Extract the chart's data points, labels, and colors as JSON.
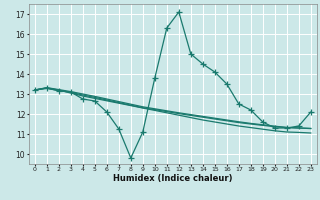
{
  "title": "",
  "xlabel": "Humidex (Indice chaleur)",
  "background_color": "#cce8e8",
  "grid_color": "#ffffff",
  "line_color": "#1a7a6e",
  "xlim": [
    -0.5,
    23.5
  ],
  "ylim": [
    9.5,
    17.5
  ],
  "yticks": [
    10,
    11,
    12,
    13,
    14,
    15,
    16,
    17
  ],
  "xticks": [
    0,
    1,
    2,
    3,
    4,
    5,
    6,
    7,
    8,
    9,
    10,
    11,
    12,
    13,
    14,
    15,
    16,
    17,
    18,
    19,
    20,
    21,
    22,
    23
  ],
  "series1_x": [
    0,
    1,
    2,
    3,
    4,
    5,
    6,
    7,
    8,
    9,
    10,
    11,
    12,
    13,
    14,
    15,
    16,
    17,
    18,
    19,
    20,
    21,
    22,
    23
  ],
  "series1_y": [
    13.2,
    13.3,
    13.15,
    13.1,
    12.75,
    12.65,
    12.1,
    11.25,
    9.8,
    11.1,
    13.8,
    16.3,
    17.1,
    15.0,
    14.5,
    14.1,
    13.5,
    12.5,
    12.2,
    11.6,
    11.3,
    11.3,
    11.4,
    12.1
  ],
  "series2_x": [
    0,
    1,
    2,
    3,
    4,
    5,
    6,
    7,
    8,
    9,
    10,
    11,
    12,
    13,
    14,
    15,
    16,
    17,
    18,
    19,
    20,
    21,
    22,
    23
  ],
  "series2_y": [
    13.2,
    13.3,
    13.2,
    13.05,
    12.9,
    12.78,
    12.66,
    12.54,
    12.42,
    12.3,
    12.18,
    12.06,
    11.94,
    11.82,
    11.7,
    11.6,
    11.5,
    11.4,
    11.32,
    11.24,
    11.16,
    11.1,
    11.08,
    11.05
  ],
  "series3_x": [
    0,
    1,
    2,
    3,
    4,
    5,
    6,
    7,
    8,
    9,
    10,
    11,
    12,
    13,
    14,
    15,
    16,
    17,
    18,
    19,
    20,
    21,
    22,
    23
  ],
  "series3_y": [
    13.2,
    13.28,
    13.18,
    13.08,
    12.95,
    12.83,
    12.7,
    12.57,
    12.44,
    12.31,
    12.22,
    12.12,
    12.02,
    11.93,
    11.84,
    11.75,
    11.66,
    11.57,
    11.5,
    11.43,
    11.37,
    11.32,
    11.3,
    11.28
  ],
  "series4_x": [
    0,
    1,
    2,
    3,
    4,
    5,
    6,
    7,
    8,
    9,
    10,
    11,
    12,
    13,
    14,
    15,
    16,
    17,
    18,
    19,
    20,
    21,
    22,
    23
  ],
  "series4_y": [
    13.2,
    13.32,
    13.22,
    13.12,
    13.0,
    12.88,
    12.75,
    12.62,
    12.49,
    12.36,
    12.26,
    12.16,
    12.06,
    11.97,
    11.88,
    11.79,
    11.7,
    11.61,
    11.53,
    11.46,
    11.39,
    11.33,
    11.3,
    11.27
  ]
}
